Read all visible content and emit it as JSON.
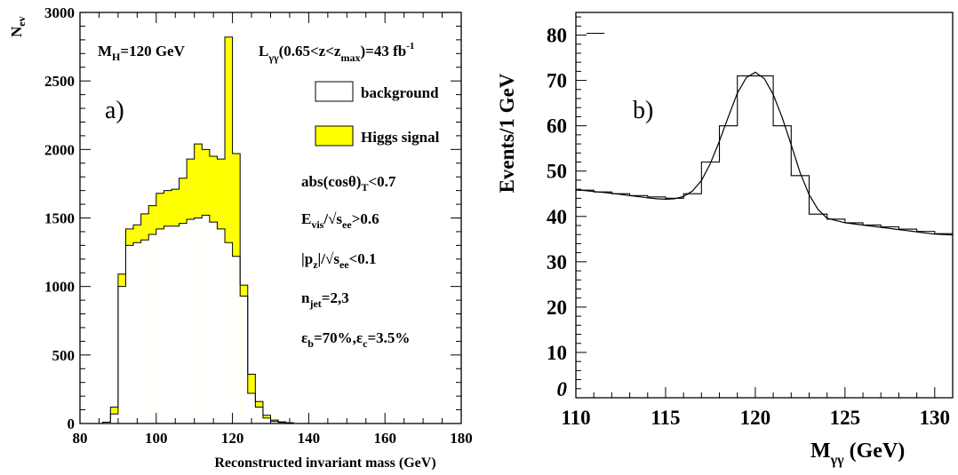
{
  "chart_data": [
    {
      "type": "bar",
      "panel_label": "a)",
      "xlabel": "Reconstructed invariant mass (GeV)",
      "ylabel": {
        "base": "N",
        "sub": "ev"
      },
      "xlim": [
        80,
        180
      ],
      "ylim": [
        0,
        3000
      ],
      "x_ticks": [
        80,
        100,
        120,
        140,
        160,
        180
      ],
      "y_ticks": [
        0,
        500,
        1000,
        1500,
        2000,
        2500,
        3000
      ],
      "bin_width": 2,
      "bin_edges": [
        86,
        88,
        90,
        92,
        94,
        96,
        98,
        100,
        102,
        104,
        106,
        108,
        110,
        112,
        114,
        116,
        118,
        120,
        122,
        124,
        126,
        128,
        130,
        132,
        134,
        136
      ],
      "series": [
        {
          "name": "background",
          "color": "#ffffff",
          "values": [
            10,
            70,
            1000,
            1300,
            1320,
            1340,
            1380,
            1420,
            1440,
            1440,
            1460,
            1490,
            1500,
            1520,
            1470,
            1420,
            1320,
            1220,
            930,
            220,
            120,
            40,
            15,
            8,
            4
          ]
        },
        {
          "name": "Higgs signal",
          "color": "#ffff00",
          "values": [
            10,
            120,
            1090,
            1420,
            1450,
            1530,
            1590,
            1680,
            1700,
            1710,
            1790,
            1930,
            2040,
            2000,
            1950,
            1930,
            2820,
            1970,
            1010,
            360,
            160,
            60,
            25,
            12,
            6
          ]
        }
      ],
      "legend": {
        "position": "right",
        "items": [
          "background",
          "Higgs signal"
        ]
      },
      "annotations": {
        "mass": {
          "base": "M",
          "sub": "H",
          "rest": "=120 GeV"
        },
        "lumi": {
          "base": "L",
          "sub": "γγ",
          "mid1": "(0.65<z<z",
          "sub2": "max",
          "mid2": ")=43 fb",
          "sup": "-1"
        },
        "cut1": {
          "a": "abs(cosθ)",
          "sub": "T",
          "b": "<0.7"
        },
        "cut2": {
          "a": "E",
          "sub1": "vis",
          "b": "/√s",
          "sub2": "ee",
          "c": ">0.6"
        },
        "cut3": {
          "a": "|p",
          "sub1": "z",
          "b": "|/√s",
          "sub2": "ee",
          "c": "<0.1"
        },
        "cut4": {
          "a": "n",
          "sub": "jet",
          "b": "=2,3"
        },
        "cut5": {
          "a": "ε",
          "sub1": "b",
          "b": "=70%,ε",
          "sub2": "c",
          "c": "=3.5%"
        }
      }
    },
    {
      "type": "line",
      "panel_label": "b)",
      "xlabel": {
        "base": "M",
        "sub": "γγ",
        "rest": " (GeV)"
      },
      "ylabel": "Events/1 GeV",
      "xlim": [
        110,
        131
      ],
      "ylim": [
        0,
        85
      ],
      "x_ticks": [
        110,
        115,
        120,
        125,
        130
      ],
      "y_ticks": [
        0,
        10,
        20,
        30,
        40,
        50,
        60,
        70,
        80
      ],
      "y_tick_labels": [
        "0",
        "10",
        "20",
        "30",
        "40",
        "50",
        "60",
        "70",
        "80"
      ],
      "bin_edges": [
        110,
        111,
        112,
        113,
        114,
        115,
        116,
        117,
        118,
        119,
        120,
        121,
        122,
        123,
        124,
        125,
        126,
        127,
        128,
        129,
        130,
        131
      ],
      "histogram": [
        45.8,
        45.4,
        45.0,
        44.6,
        44.3,
        44.0,
        45.0,
        52.0,
        60.0,
        71.0,
        71.0,
        60.0,
        49.0,
        40.5,
        39.4,
        38.6,
        38.1,
        37.7,
        37.2,
        36.7,
        36.2
      ],
      "fit": {
        "x": [
          110,
          111,
          112,
          113,
          114,
          114.5,
          115,
          115.5,
          116,
          116.5,
          117,
          117.5,
          118,
          118.5,
          119,
          119.5,
          120,
          120.5,
          121,
          121.5,
          122,
          122.5,
          123,
          123.5,
          124,
          125,
          126,
          127,
          128,
          129,
          130,
          131
        ],
        "y": [
          45.9,
          45.5,
          45.1,
          44.6,
          44.1,
          43.9,
          43.8,
          43.9,
          44.4,
          45.6,
          47.9,
          51.7,
          56.6,
          62.0,
          67.2,
          70.6,
          71.8,
          70.4,
          66.9,
          61.8,
          55.8,
          49.6,
          44.8,
          41.5,
          39.6,
          38.6,
          38.1,
          37.6,
          37.1,
          36.6,
          36.1,
          35.9
        ]
      },
      "legend_mark": "—"
    }
  ]
}
